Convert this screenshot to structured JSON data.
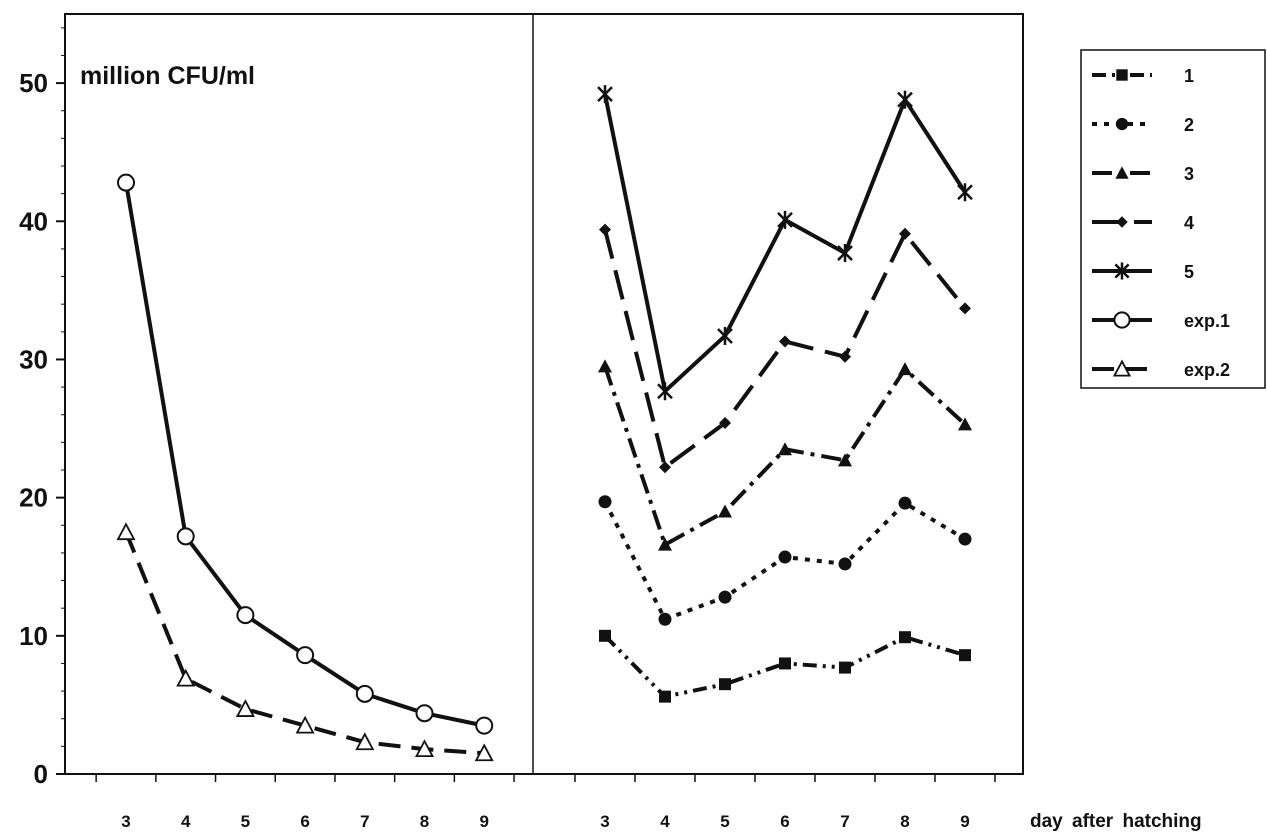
{
  "chart_data": {
    "type": "line",
    "unit_label": "million CFU/ml",
    "xlabel": "day after hatching",
    "ylim": [
      0,
      55
    ],
    "y_ticks": [
      "0",
      "10",
      "20",
      "30",
      "40",
      "50"
    ],
    "grid": false,
    "legend_position": "right",
    "panels": [
      {
        "name": "left",
        "x": [
          "3",
          "4",
          "5",
          "6",
          "7",
          "8",
          "9"
        ],
        "series": [
          {
            "name": "exp.1",
            "marker": "open-circle",
            "dash": "solid",
            "values": [
              42.8,
              17.2,
              11.5,
              8.6,
              5.8,
              4.4,
              3.5
            ]
          },
          {
            "name": "exp.2",
            "marker": "open-triangle",
            "dash": "dashed",
            "values": [
              17.5,
              6.9,
              4.7,
              3.5,
              2.3,
              1.8,
              1.5
            ]
          }
        ]
      },
      {
        "name": "right",
        "x": [
          "3",
          "4",
          "5",
          "6",
          "7",
          "8",
          "9"
        ],
        "series": [
          {
            "name": "1",
            "marker": "square",
            "dash": "dash-dot-dot",
            "values": [
              10.0,
              5.6,
              6.5,
              8.0,
              7.7,
              9.9,
              8.6
            ]
          },
          {
            "name": "2",
            "marker": "circle",
            "dash": "dotted",
            "values": [
              19.7,
              11.2,
              12.8,
              15.7,
              15.2,
              19.6,
              17.0
            ]
          },
          {
            "name": "3",
            "marker": "triangle",
            "dash": "dash-dot",
            "values": [
              29.5,
              16.6,
              19.0,
              23.5,
              22.7,
              29.3,
              25.3
            ]
          },
          {
            "name": "4",
            "marker": "diamond",
            "dash": "long-dash",
            "values": [
              39.4,
              22.2,
              25.4,
              31.3,
              30.2,
              39.1,
              33.7
            ]
          },
          {
            "name": "5",
            "marker": "star",
            "dash": "solid",
            "values": [
              49.2,
              27.7,
              31.7,
              40.1,
              37.7,
              48.8,
              42.1
            ]
          }
        ]
      }
    ],
    "legend": [
      {
        "label": "1",
        "marker": "square",
        "dash": "dash-dot-dot"
      },
      {
        "label": "2",
        "marker": "circle",
        "dash": "dotted"
      },
      {
        "label": "3",
        "marker": "triangle",
        "dash": "dash-dot"
      },
      {
        "label": "4",
        "marker": "diamond",
        "dash": "long-dash"
      },
      {
        "label": "5",
        "marker": "star",
        "dash": "solid"
      },
      {
        "label": "exp.1",
        "marker": "open-circle",
        "dash": "solid"
      },
      {
        "label": "exp.2",
        "marker": "open-triangle",
        "dash": "dashed"
      }
    ]
  }
}
